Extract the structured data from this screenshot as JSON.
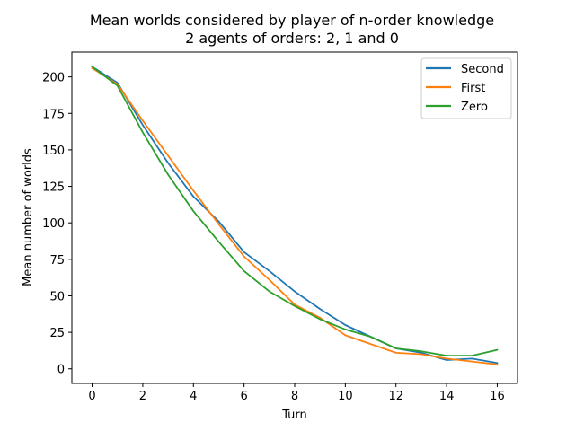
{
  "chart_data": {
    "type": "line",
    "title": "Mean worlds considered by player of n-order knowledge",
    "subtitle": "2 agents of orders: 2, 1 and 0",
    "xlabel": "Turn",
    "ylabel": "Mean number of worlds",
    "xlim": [
      -0.8,
      16.8
    ],
    "ylim": [
      -10,
      217
    ],
    "x_ticks": [
      0,
      2,
      4,
      6,
      8,
      10,
      12,
      14,
      16
    ],
    "y_ticks": [
      0,
      25,
      50,
      75,
      100,
      125,
      150,
      175,
      200
    ],
    "x": [
      0,
      1,
      2,
      3,
      4,
      5,
      6,
      7,
      8,
      9,
      10,
      11,
      12,
      13,
      14,
      15,
      16
    ],
    "series": [
      {
        "name": "Second",
        "color": "#1f77b4",
        "values": [
          207,
          196,
          167,
          141,
          118,
          101,
          80,
          67,
          53,
          41,
          30,
          22,
          14,
          11,
          6,
          7,
          4
        ]
      },
      {
        "name": "First",
        "color": "#ff7f0e",
        "values": [
          206,
          195,
          170,
          146,
          122,
          99,
          77,
          61,
          44,
          35,
          23,
          17,
          11,
          10,
          7,
          5,
          3
        ]
      },
      {
        "name": "Zero",
        "color": "#2ca02c",
        "values": [
          207,
          194,
          162,
          133,
          108,
          87,
          67,
          53,
          43,
          34,
          27,
          22,
          14,
          12,
          9,
          9,
          13
        ]
      }
    ],
    "grid": false,
    "legend_position": "top-right"
  }
}
